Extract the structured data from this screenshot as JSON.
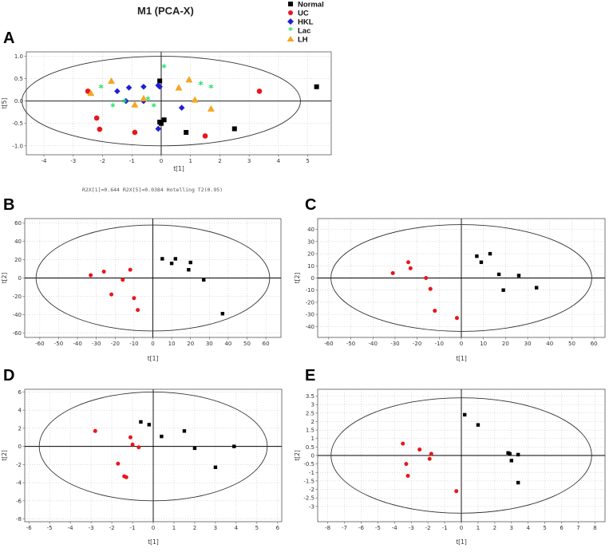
{
  "figure": {
    "title": "M1 (PCA-X)",
    "footer": "R2X[1]=0.644  R2X[5]=0.0384  Hotelling T2(0.95)",
    "legend": [
      {
        "label": "Normal",
        "color": "#000000",
        "marker": "square"
      },
      {
        "label": "UC",
        "color": "#e8161c",
        "marker": "circle"
      },
      {
        "label": "HKL",
        "color": "#1f1fd6",
        "marker": "diamond"
      },
      {
        "label": "Lac",
        "color": "#22e06a",
        "marker": "star"
      },
      {
        "label": "LH",
        "color": "#f5a623",
        "marker": "triangle"
      }
    ]
  },
  "chart_data": [
    {
      "panel": "A",
      "type": "scatter",
      "xlabel": "t[1]",
      "ylabel": "t[5]",
      "xlim": [
        -4.6,
        5.8
      ],
      "ylim": [
        -1.2,
        1.1
      ],
      "xticks": [
        -4,
        -3,
        -2,
        -1,
        0,
        1,
        2,
        3,
        4,
        5
      ],
      "yticks": [
        -1.0,
        -0.5,
        0.0,
        0.5,
        1.0
      ],
      "ellipse": {
        "cx": 0,
        "cy": 0,
        "rx": 4.75,
        "ry": 1.0
      },
      "series": [
        {
          "name": "Normal",
          "points": [
            [
              -0.05,
              0.45
            ],
            [
              -0.05,
              -0.47
            ],
            [
              0.1,
              -0.42
            ],
            [
              0.0,
              -0.5
            ],
            [
              0.85,
              -0.7
            ],
            [
              2.5,
              -0.62
            ],
            [
              5.3,
              0.32
            ]
          ]
        },
        {
          "name": "UC",
          "points": [
            [
              -2.5,
              0.22
            ],
            [
              -2.2,
              -0.38
            ],
            [
              -2.1,
              -0.63
            ],
            [
              -0.9,
              -0.7
            ],
            [
              1.5,
              -0.78
            ],
            [
              3.35,
              0.22
            ]
          ]
        },
        {
          "name": "HKL",
          "points": [
            [
              -1.5,
              0.22
            ],
            [
              -1.1,
              0.3
            ],
            [
              -1.2,
              0.0
            ],
            [
              -0.6,
              0.32
            ],
            [
              -0.6,
              0.0
            ],
            [
              -0.1,
              0.35
            ],
            [
              -0.1,
              -0.62
            ],
            [
              -0.05,
              0.32
            ],
            [
              0.7,
              -0.15
            ]
          ]
        },
        {
          "name": "Lac",
          "points": [
            [
              -2.05,
              0.3
            ],
            [
              -1.65,
              -0.12
            ],
            [
              -1.25,
              -0.02
            ],
            [
              -0.45,
              0.03
            ],
            [
              -0.25,
              -0.12
            ],
            [
              0.1,
              0.75
            ],
            [
              1.35,
              0.37
            ],
            [
              1.7,
              0.3
            ]
          ]
        },
        {
          "name": "LH",
          "points": [
            [
              -2.4,
              0.18
            ],
            [
              -1.7,
              0.45
            ],
            [
              -0.9,
              -0.08
            ],
            [
              -0.6,
              0.06
            ],
            [
              0.6,
              0.3
            ],
            [
              0.95,
              0.48
            ],
            [
              1.15,
              0.03
            ],
            [
              1.7,
              -0.17
            ]
          ]
        }
      ]
    },
    {
      "panel": "B",
      "type": "scatter",
      "xlabel": "t[1]",
      "ylabel": "t[2]",
      "xlim": [
        -68,
        68
      ],
      "ylim": [
        -65,
        65
      ],
      "xticks": [
        -60,
        -50,
        -40,
        -30,
        -20,
        -10,
        0,
        10,
        20,
        30,
        40,
        50,
        60
      ],
      "yticks": [
        -60,
        -40,
        -20,
        0,
        20,
        40,
        60
      ],
      "ellipse": {
        "cx": 0,
        "cy": 0,
        "rx": 62,
        "ry": 58
      },
      "series": [
        {
          "name": "Normal",
          "points": [
            [
              5,
              21
            ],
            [
              10,
              16
            ],
            [
              12,
              21
            ],
            [
              20,
              17
            ],
            [
              19,
              9
            ],
            [
              27,
              -2
            ],
            [
              37,
              -39
            ]
          ]
        },
        {
          "name": "UC",
          "points": [
            [
              -33,
              3
            ],
            [
              -26,
              7
            ],
            [
              -22,
              -18
            ],
            [
              -16,
              -2
            ],
            [
              -12,
              9
            ],
            [
              -10,
              -22
            ],
            [
              -8,
              -35
            ]
          ]
        }
      ]
    },
    {
      "panel": "C",
      "type": "scatter",
      "xlabel": "t[1]",
      "ylabel": "t[2]",
      "xlim": [
        -65,
        65
      ],
      "ylim": [
        -49,
        49
      ],
      "xticks": [
        -60,
        -50,
        -40,
        -30,
        -20,
        -10,
        0,
        10,
        20,
        30,
        40,
        50,
        60
      ],
      "yticks": [
        -40,
        -30,
        -20,
        -10,
        0,
        10,
        20,
        30,
        40
      ],
      "ellipse": {
        "cx": 0,
        "cy": 0,
        "rx": 59,
        "ry": 44
      },
      "series": [
        {
          "name": "Normal",
          "points": [
            [
              7,
              18
            ],
            [
              9,
              13
            ],
            [
              13,
              20
            ],
            [
              17,
              3
            ],
            [
              19,
              -10
            ],
            [
              26,
              2
            ],
            [
              34,
              -8
            ]
          ]
        },
        {
          "name": "UC",
          "points": [
            [
              -31,
              4
            ],
            [
              -24,
              13
            ],
            [
              -23,
              8
            ],
            [
              -16,
              0
            ],
            [
              -14,
              -9
            ],
            [
              -12,
              -27
            ],
            [
              -2,
              -33
            ]
          ]
        }
      ]
    },
    {
      "panel": "D",
      "type": "scatter",
      "xlabel": "t[1]",
      "ylabel": "t[2]",
      "xlim": [
        -6.2,
        6.2
      ],
      "ylim": [
        -8.3,
        6.3
      ],
      "xticks": [
        -6,
        -5,
        -4,
        -3,
        -2,
        -1,
        0,
        1,
        2,
        3,
        4,
        5,
        6
      ],
      "yticks": [
        -8,
        -6,
        -4,
        -2,
        0,
        2,
        4,
        6
      ],
      "ellipse": {
        "cx": 0,
        "cy": 0,
        "rx": 5.5,
        "ry": 6.0
      },
      "series": [
        {
          "name": "Normal",
          "points": [
            [
              -0.6,
              2.7
            ],
            [
              -0.2,
              2.4
            ],
            [
              0.4,
              1.1
            ],
            [
              1.5,
              1.7
            ],
            [
              2.0,
              -0.2
            ],
            [
              3.0,
              -2.3
            ],
            [
              3.9,
              0.0
            ]
          ]
        },
        {
          "name": "UC",
          "points": [
            [
              -2.8,
              1.7
            ],
            [
              -1.7,
              -1.9
            ],
            [
              -1.4,
              -3.3
            ],
            [
              -1.3,
              -3.4
            ],
            [
              -1.1,
              1.0
            ],
            [
              -1.0,
              0.2
            ],
            [
              -0.7,
              -0.1
            ]
          ]
        }
      ]
    },
    {
      "panel": "E",
      "type": "scatter",
      "xlabel": "t[1]",
      "ylabel": "t[2]",
      "xlim": [
        -8.6,
        8.6
      ],
      "ylim": [
        -3.9,
        3.9
      ],
      "xticks": [
        -8,
        -7,
        -6,
        -5,
        -4,
        -3,
        -2,
        -1,
        0,
        1,
        2,
        3,
        4,
        5,
        6,
        7,
        8
      ],
      "yticks": [
        -3,
        -2.5,
        -2,
        -1.5,
        -1,
        -0.5,
        0,
        0.5,
        1,
        1.5,
        2,
        2.5,
        3,
        3.5
      ],
      "ellipse": {
        "cx": 0,
        "cy": 0,
        "rx": 7.8,
        "ry": 3.4
      },
      "series": [
        {
          "name": "Normal",
          "points": [
            [
              0.2,
              2.4
            ],
            [
              1.0,
              1.8
            ],
            [
              2.8,
              0.15
            ],
            [
              2.9,
              0.1
            ],
            [
              3.0,
              -0.3
            ],
            [
              3.4,
              0.05
            ],
            [
              3.4,
              -1.6
            ]
          ]
        },
        {
          "name": "UC",
          "points": [
            [
              -3.5,
              0.7
            ],
            [
              -3.3,
              -0.5
            ],
            [
              -3.2,
              -1.2
            ],
            [
              -2.5,
              0.35
            ],
            [
              -1.9,
              -0.2
            ],
            [
              -1.8,
              0.1
            ],
            [
              -0.3,
              -2.1
            ]
          ]
        }
      ]
    }
  ]
}
